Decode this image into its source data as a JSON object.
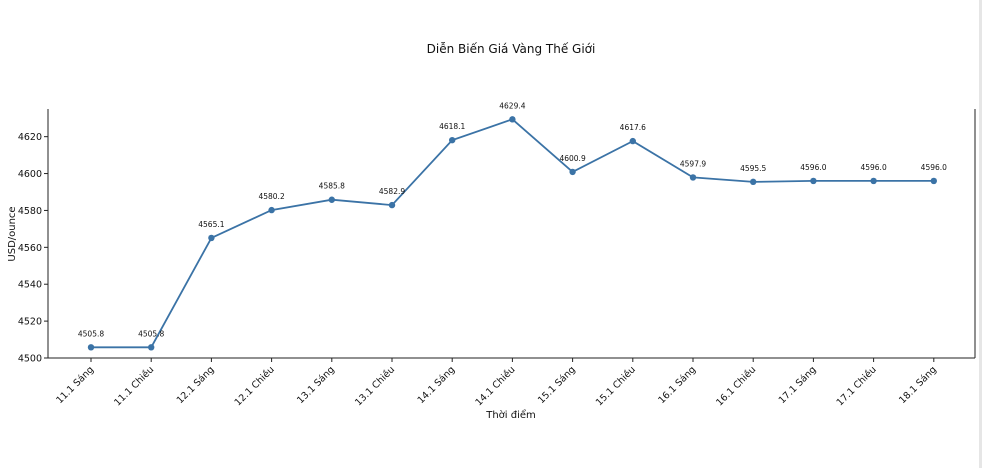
{
  "chart_data": {
    "type": "line",
    "title": "Diễn Biến Giá Vàng Thế Giới",
    "xlabel": "Thời điểm",
    "ylabel": "USD/ounce",
    "categories": [
      "11.1 Sáng",
      "11.1 Chiều",
      "12.1 Sáng",
      "12.1 Chiều",
      "13.1 Sáng",
      "13.1 Chiều",
      "14.1 Sáng",
      "14.1 Chiều",
      "15.1 Sáng",
      "15.1 Chiều",
      "16.1 Sáng",
      "16.1 Chiều",
      "17.1 Sáng",
      "17.1 Chiều",
      "18.1 Sáng"
    ],
    "values": [
      4505.8,
      4505.8,
      4565.1,
      4580.2,
      4585.8,
      4582.9,
      4618.1,
      4629.4,
      4600.9,
      4617.6,
      4597.9,
      4595.5,
      4596.0,
      4596.0,
      4596.0
    ],
    "data_labels": [
      "4505.8",
      "4505.8",
      "4565.1",
      "4580.2",
      "4585.8",
      "4582.9",
      "4618.1",
      "4629.4",
      "4600.9",
      "4617.6",
      "4597.9",
      "4595.5",
      "4596.0",
      "4596.0",
      "4596.0"
    ],
    "ylim": [
      4500,
      4635
    ],
    "yticks": [
      4500,
      4520,
      4540,
      4560,
      4580,
      4600,
      4620
    ],
    "grid": false,
    "legend": "none",
    "line_color": "#3b73a6"
  }
}
